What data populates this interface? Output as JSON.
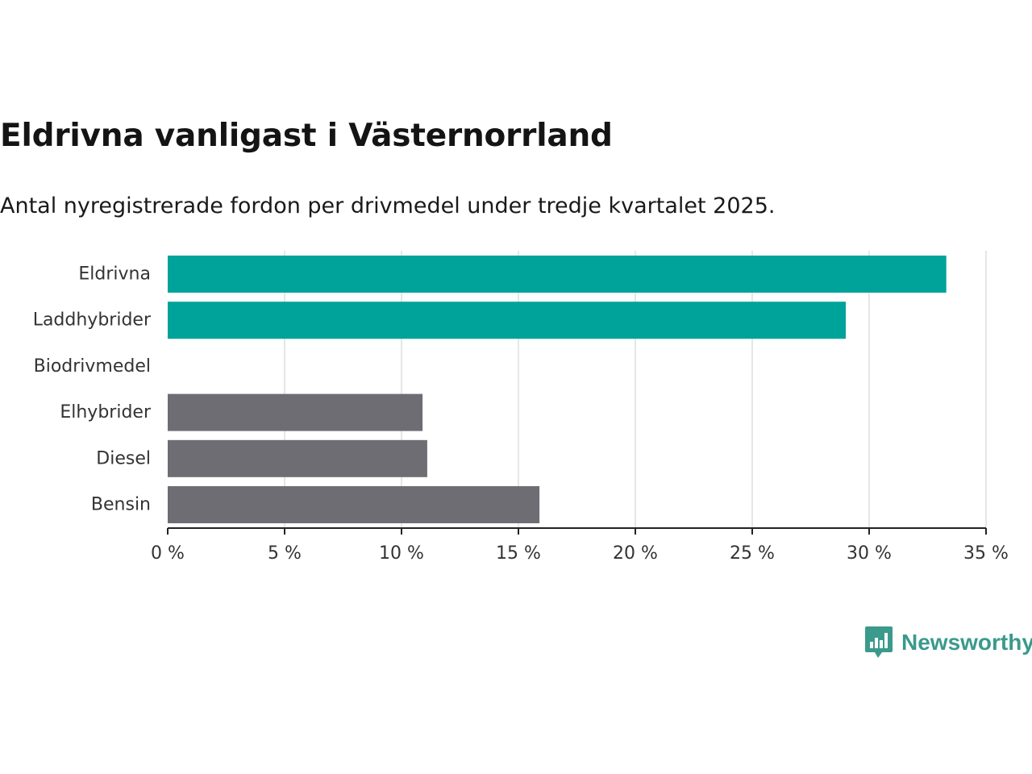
{
  "chart_data": {
    "type": "bar",
    "orientation": "horizontal",
    "title": "Eldrivna vanligast i Västernorrland",
    "subtitle": "Antal nyregistrerade fordon per drivmedel under tredje kvartalet 2025.",
    "categories": [
      "Eldrivna",
      "Laddhybrider",
      "Biodrivmedel",
      "Elhybrider",
      "Diesel",
      "Bensin"
    ],
    "values": [
      33.3,
      29.0,
      0,
      10.9,
      11.1,
      15.9
    ],
    "highlight": [
      true,
      true,
      false,
      false,
      false,
      false
    ],
    "xlim": [
      0,
      35
    ],
    "xticks": [
      0,
      5,
      10,
      15,
      20,
      25,
      30,
      35
    ],
    "xtick_labels": [
      "0 %",
      "5 %",
      "10 %",
      "15 %",
      "20 %",
      "25 %",
      "30 %",
      "35 %"
    ],
    "grid": true,
    "xlabel": "",
    "ylabel": ""
  },
  "colors": {
    "highlight": "#00a39a",
    "default": "#6e6d73",
    "grid": "#dddddd",
    "axis": "#222222"
  },
  "brand": {
    "name": "Newsworthy",
    "icon": "newsworthy-logo-icon"
  }
}
